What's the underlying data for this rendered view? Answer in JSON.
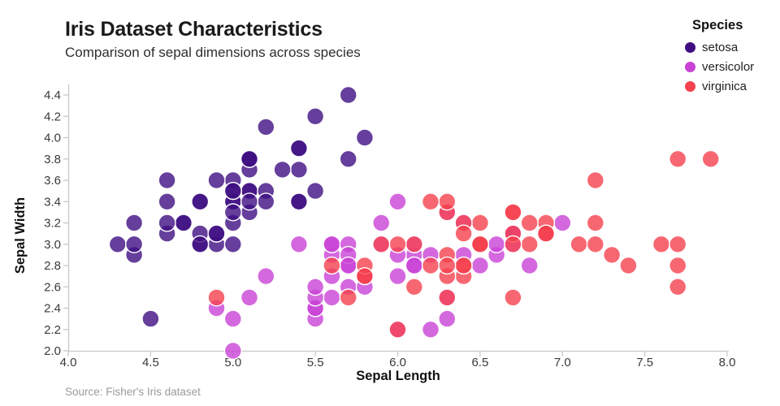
{
  "chart_data": {
    "type": "scatter",
    "title": "Iris Dataset Characteristics",
    "subtitle": "Comparison of sepal dimensions across species",
    "xlabel": "Sepal Length",
    "ylabel": "Sepal Width",
    "legend_title": "Species",
    "legend_position": "top-right",
    "source": "Source: Fisher's Iris dataset",
    "grid": false,
    "xlim": [
      4.0,
      8.0
    ],
    "ylim": [
      2.0,
      4.4
    ],
    "xticks": [
      "4.0",
      "4.5",
      "5.0",
      "5.5",
      "6.0",
      "6.5",
      "7.0",
      "7.5",
      "8.0"
    ],
    "yticks": [
      "2.0",
      "2.2",
      "2.4",
      "2.6",
      "2.8",
      "3.0",
      "3.2",
      "3.4",
      "3.6",
      "3.8",
      "4.0",
      "4.2",
      "4.4"
    ],
    "axis_color": "#c9c9c9",
    "marker": {
      "opacity": 0.8,
      "stroke": "#ffffff"
    },
    "series": [
      {
        "name": "setosa",
        "color": "#3f0f82",
        "points": [
          [
            5.1,
            3.5
          ],
          [
            4.9,
            3.0
          ],
          [
            4.7,
            3.2
          ],
          [
            4.6,
            3.1
          ],
          [
            5.0,
            3.6
          ],
          [
            5.4,
            3.9
          ],
          [
            4.6,
            3.4
          ],
          [
            5.0,
            3.4
          ],
          [
            4.4,
            2.9
          ],
          [
            4.9,
            3.1
          ],
          [
            5.4,
            3.7
          ],
          [
            4.8,
            3.4
          ],
          [
            4.8,
            3.0
          ],
          [
            4.3,
            3.0
          ],
          [
            5.8,
            4.0
          ],
          [
            5.7,
            4.4
          ],
          [
            5.4,
            3.9
          ],
          [
            5.1,
            3.5
          ],
          [
            5.7,
            3.8
          ],
          [
            5.1,
            3.8
          ],
          [
            5.4,
            3.4
          ],
          [
            5.1,
            3.7
          ],
          [
            4.6,
            3.6
          ],
          [
            5.1,
            3.3
          ],
          [
            4.8,
            3.4
          ],
          [
            5.0,
            3.0
          ],
          [
            5.0,
            3.4
          ],
          [
            5.2,
            3.5
          ],
          [
            5.2,
            3.4
          ],
          [
            4.7,
            3.2
          ],
          [
            4.8,
            3.1
          ],
          [
            5.4,
            3.4
          ],
          [
            5.2,
            4.1
          ],
          [
            5.5,
            4.2
          ],
          [
            4.9,
            3.1
          ],
          [
            5.0,
            3.2
          ],
          [
            5.5,
            3.5
          ],
          [
            4.9,
            3.6
          ],
          [
            4.4,
            3.0
          ],
          [
            5.1,
            3.4
          ],
          [
            5.0,
            3.5
          ],
          [
            4.5,
            2.3
          ],
          [
            4.4,
            3.2
          ],
          [
            5.0,
            3.5
          ],
          [
            5.1,
            3.8
          ],
          [
            4.8,
            3.0
          ],
          [
            5.1,
            3.8
          ],
          [
            4.6,
            3.2
          ],
          [
            5.3,
            3.7
          ],
          [
            5.0,
            3.3
          ]
        ]
      },
      {
        "name": "versicolor",
        "color": "#c942d6",
        "points": [
          [
            7.0,
            3.2
          ],
          [
            6.4,
            3.2
          ],
          [
            6.9,
            3.1
          ],
          [
            5.5,
            2.3
          ],
          [
            6.5,
            2.8
          ],
          [
            5.7,
            2.8
          ],
          [
            6.3,
            3.3
          ],
          [
            4.9,
            2.4
          ],
          [
            6.6,
            2.9
          ],
          [
            5.2,
            2.7
          ],
          [
            5.0,
            2.0
          ],
          [
            5.9,
            3.0
          ],
          [
            6.0,
            2.2
          ],
          [
            6.1,
            2.9
          ],
          [
            5.6,
            2.9
          ],
          [
            6.7,
            3.1
          ],
          [
            5.6,
            3.0
          ],
          [
            5.8,
            2.7
          ],
          [
            6.2,
            2.2
          ],
          [
            5.6,
            2.5
          ],
          [
            5.9,
            3.2
          ],
          [
            6.1,
            2.8
          ],
          [
            6.3,
            2.5
          ],
          [
            6.1,
            2.8
          ],
          [
            6.4,
            2.9
          ],
          [
            6.6,
            3.0
          ],
          [
            6.8,
            2.8
          ],
          [
            6.7,
            3.0
          ],
          [
            6.0,
            2.9
          ],
          [
            5.7,
            2.6
          ],
          [
            5.5,
            2.4
          ],
          [
            5.5,
            2.4
          ],
          [
            5.8,
            2.7
          ],
          [
            6.0,
            2.7
          ],
          [
            5.4,
            3.0
          ],
          [
            6.0,
            3.4
          ],
          [
            6.7,
            3.1
          ],
          [
            6.3,
            2.3
          ],
          [
            5.6,
            3.0
          ],
          [
            5.5,
            2.5
          ],
          [
            5.5,
            2.6
          ],
          [
            6.1,
            3.0
          ],
          [
            5.8,
            2.6
          ],
          [
            5.0,
            2.3
          ],
          [
            5.6,
            2.7
          ],
          [
            5.7,
            3.0
          ],
          [
            5.7,
            2.9
          ],
          [
            6.2,
            2.9
          ],
          [
            5.1,
            2.5
          ],
          [
            5.7,
            2.8
          ]
        ]
      },
      {
        "name": "virginica",
        "color": "#f5414e",
        "points": [
          [
            6.3,
            3.3
          ],
          [
            5.8,
            2.7
          ],
          [
            7.1,
            3.0
          ],
          [
            6.3,
            2.9
          ],
          [
            6.5,
            3.0
          ],
          [
            7.6,
            3.0
          ],
          [
            4.9,
            2.5
          ],
          [
            7.3,
            2.9
          ],
          [
            6.7,
            2.5
          ],
          [
            7.2,
            3.6
          ],
          [
            6.5,
            3.2
          ],
          [
            6.4,
            2.7
          ],
          [
            6.8,
            3.0
          ],
          [
            5.7,
            2.5
          ],
          [
            5.8,
            2.8
          ],
          [
            6.4,
            3.2
          ],
          [
            6.5,
            3.0
          ],
          [
            7.7,
            3.8
          ],
          [
            7.7,
            2.6
          ],
          [
            6.0,
            2.2
          ],
          [
            6.9,
            3.2
          ],
          [
            5.6,
            2.8
          ],
          [
            7.7,
            2.8
          ],
          [
            6.3,
            2.7
          ],
          [
            6.7,
            3.3
          ],
          [
            7.2,
            3.2
          ],
          [
            6.2,
            2.8
          ],
          [
            6.1,
            3.0
          ],
          [
            6.4,
            2.8
          ],
          [
            7.2,
            3.0
          ],
          [
            7.4,
            2.8
          ],
          [
            7.9,
            3.8
          ],
          [
            6.4,
            2.8
          ],
          [
            6.3,
            2.8
          ],
          [
            6.1,
            2.6
          ],
          [
            7.7,
            3.0
          ],
          [
            6.3,
            3.4
          ],
          [
            6.4,
            3.1
          ],
          [
            6.0,
            3.0
          ],
          [
            6.9,
            3.1
          ],
          [
            6.7,
            3.1
          ],
          [
            6.9,
            3.1
          ],
          [
            5.8,
            2.7
          ],
          [
            6.8,
            3.2
          ],
          [
            6.7,
            3.3
          ],
          [
            6.7,
            3.0
          ],
          [
            6.3,
            2.5
          ],
          [
            6.5,
            3.0
          ],
          [
            6.2,
            3.4
          ],
          [
            5.9,
            3.0
          ]
        ]
      }
    ]
  }
}
